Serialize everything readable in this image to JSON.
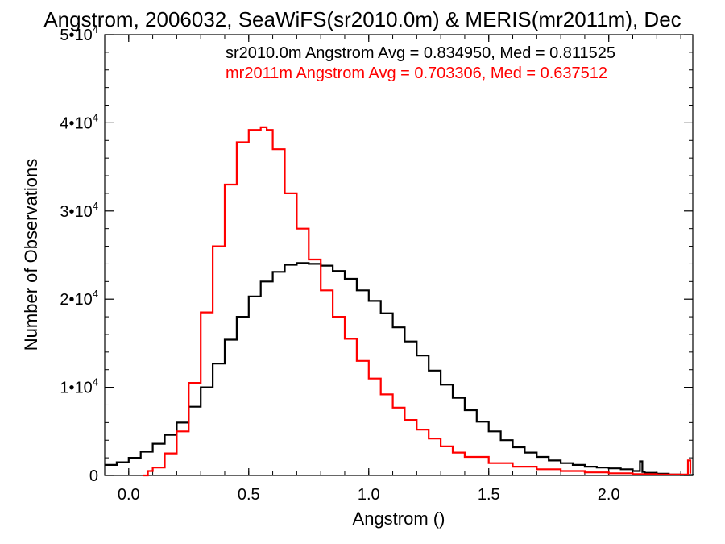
{
  "chart_data": {
    "type": "line",
    "title": "Angstrom, 2006032, SeaWiFS(sr2010.0m) & MERIS(mr2011m), Dec",
    "xlabel": "Angstrom ()",
    "ylabel": "Number of Observations",
    "xlim": [
      -0.1,
      2.35
    ],
    "ylim": [
      0,
      50000
    ],
    "x_ticks": [
      {
        "value": 0.0,
        "label": "0.0"
      },
      {
        "value": 0.5,
        "label": "0.5"
      },
      {
        "value": 1.0,
        "label": "1.0"
      },
      {
        "value": 1.5,
        "label": "1.5"
      },
      {
        "value": 2.0,
        "label": "2.0"
      }
    ],
    "y_ticks": [
      {
        "value": 0,
        "base": "0",
        "exp": ""
      },
      {
        "value": 10000,
        "base": "1•10",
        "exp": "4"
      },
      {
        "value": 20000,
        "base": "2•10",
        "exp": "4"
      },
      {
        "value": 30000,
        "base": "3•10",
        "exp": "4"
      },
      {
        "value": 40000,
        "base": "4•10",
        "exp": "4"
      },
      {
        "value": 50000,
        "base": "5•10",
        "exp": "4"
      }
    ],
    "grid": false,
    "legend_position": "top-right",
    "series": [
      {
        "name": "sr2010.0m",
        "legend_text": "sr2010.0m Angstrom Avg = 0.834950, Med = 0.811525",
        "color": "#000000",
        "x": [
          -0.1,
          -0.05,
          0.0,
          0.05,
          0.1,
          0.15,
          0.2,
          0.25,
          0.3,
          0.35,
          0.4,
          0.45,
          0.5,
          0.55,
          0.6,
          0.65,
          0.7,
          0.75,
          0.8,
          0.85,
          0.9,
          0.95,
          1.0,
          1.05,
          1.1,
          1.15,
          1.2,
          1.25,
          1.3,
          1.35,
          1.4,
          1.45,
          1.5,
          1.55,
          1.6,
          1.65,
          1.7,
          1.75,
          1.8,
          1.85,
          1.9,
          1.95,
          2.0,
          2.05,
          2.1,
          2.12,
          2.13,
          2.14,
          2.15,
          2.2,
          2.25,
          2.3,
          2.35
        ],
        "values": [
          1200,
          1500,
          2000,
          2700,
          3600,
          4600,
          6000,
          7800,
          10000,
          12700,
          15400,
          18000,
          20300,
          22000,
          23100,
          23900,
          24100,
          24000,
          23800,
          23200,
          22300,
          21000,
          19800,
          18400,
          16800,
          15200,
          13600,
          11900,
          10300,
          8800,
          7400,
          6100,
          5000,
          4000,
          3200,
          2600,
          2100,
          1700,
          1400,
          1200,
          1000,
          900,
          800,
          700,
          500,
          500,
          1600,
          400,
          300,
          200,
          100,
          50,
          0
        ]
      },
      {
        "name": "mr2011m",
        "legend_text": "mr2011m Angstrom Avg = 0.703306, Med = 0.637512",
        "color": "#ff0000",
        "x": [
          0.06,
          0.08,
          0.1,
          0.15,
          0.2,
          0.25,
          0.3,
          0.35,
          0.4,
          0.45,
          0.5,
          0.55,
          0.575,
          0.6,
          0.65,
          0.7,
          0.75,
          0.8,
          0.85,
          0.9,
          0.95,
          1.0,
          1.05,
          1.1,
          1.15,
          1.2,
          1.25,
          1.3,
          1.35,
          1.4,
          1.5,
          1.6,
          1.7,
          1.8,
          1.9,
          2.0,
          2.1,
          2.2,
          2.3,
          2.33,
          2.34
        ],
        "values": [
          0,
          500,
          900,
          2500,
          5000,
          10500,
          18500,
          26000,
          33000,
          37800,
          39200,
          39500,
          39200,
          37000,
          32000,
          28000,
          24500,
          21000,
          18000,
          15500,
          13000,
          11000,
          9200,
          7700,
          6300,
          5200,
          4200,
          3300,
          2600,
          2100,
          1400,
          1000,
          700,
          500,
          350,
          250,
          150,
          100,
          100,
          1700,
          200
        ]
      }
    ]
  }
}
